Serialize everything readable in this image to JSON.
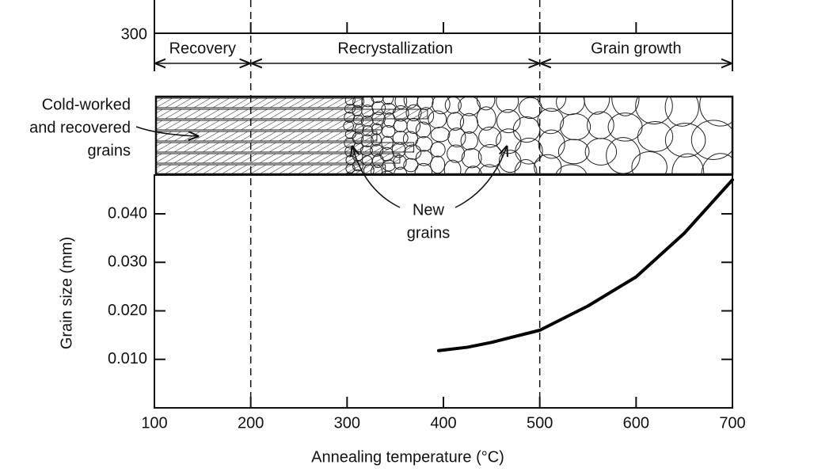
{
  "chart_data": {
    "type": "line",
    "x_label": "Annealing temperature (°C)",
    "y_label": "Grain size (mm)",
    "x": [
      395,
      425,
      450,
      500,
      550,
      600,
      650,
      700
    ],
    "values": [
      0.0118,
      0.0125,
      0.0135,
      0.016,
      0.021,
      0.027,
      0.036,
      0.047
    ],
    "color": "#000000",
    "xlim": [
      100,
      700
    ],
    "xticks": [
      100,
      200,
      300,
      400,
      500,
      600,
      700
    ],
    "ylim": [
      0,
      0.048
    ],
    "yticks": [
      {
        "value": 0.01,
        "label": "0.010"
      },
      {
        "value": 0.02,
        "label": "0.020"
      },
      {
        "value": 0.03,
        "label": "0.030"
      },
      {
        "value": 0.04,
        "label": "0.040"
      }
    ],
    "upper_yticks": [
      300
    ],
    "regions": [
      {
        "name": "Recovery",
        "from": 100,
        "to": 200
      },
      {
        "name": "Recrystallization",
        "from": 200,
        "to": 500
      },
      {
        "name": "Grain growth",
        "from": 500,
        "to": 700
      }
    ],
    "annotations": [
      {
        "lines": [
          "Cold-worked",
          "and recovered",
          "grains"
        ]
      },
      {
        "lines": [
          "New",
          "grains"
        ]
      }
    ]
  }
}
